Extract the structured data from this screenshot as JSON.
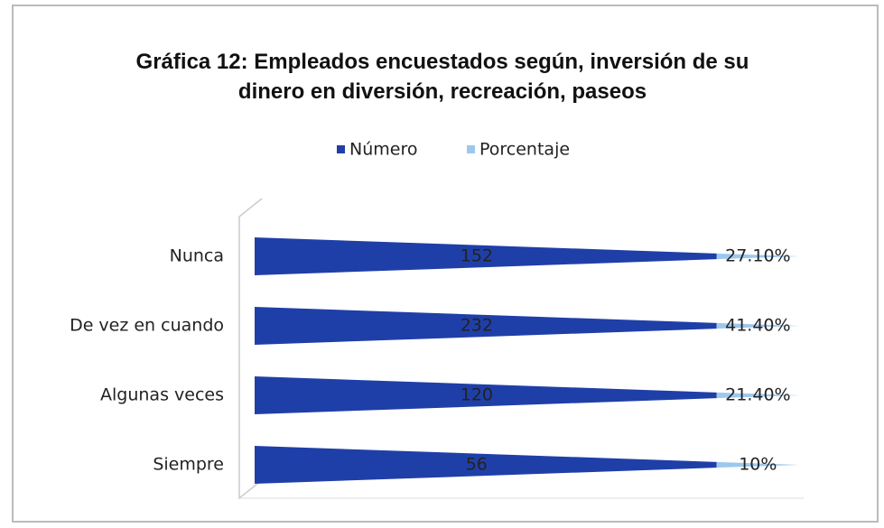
{
  "chart_data": {
    "type": "bar",
    "title": "Gráfica 12: Empleados encuestados según, inversión de su dinero en diversión, recreación, paseos",
    "categories": [
      "Nunca",
      "De vez en cuando",
      "Algunas veces",
      "Siempre"
    ],
    "stacked": "percent",
    "orientation": "horizontal",
    "legend": "top",
    "series": [
      {
        "name": "Número",
        "color": "#1f3fa8",
        "values": [
          152,
          232,
          120,
          56
        ]
      },
      {
        "name": "Porcentaje",
        "color": "#9cc8ee",
        "values": [
          27.1,
          41.4,
          21.4,
          10
        ],
        "value_labels": [
          "27.10%",
          "41.40%",
          "21.40%",
          "10%"
        ]
      }
    ]
  }
}
